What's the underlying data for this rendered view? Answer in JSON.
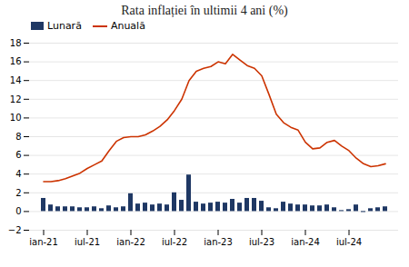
{
  "chart_data": {
    "type": "bar",
    "title": "Rata inflației în ultimii 4 ani (%)",
    "categories": [
      "ian-21",
      null,
      null,
      null,
      null,
      null,
      "iul-21",
      null,
      null,
      null,
      null,
      null,
      "ian-22",
      null,
      null,
      null,
      null,
      null,
      "iul-22",
      null,
      null,
      null,
      null,
      null,
      "ian-23",
      null,
      null,
      null,
      null,
      null,
      "iul-23",
      null,
      null,
      null,
      null,
      null,
      "ian-24",
      null,
      null,
      null,
      null,
      null,
      "iul-24",
      null,
      null,
      null,
      null,
      null
    ],
    "series": [
      {
        "name": "Lunară",
        "type": "bar",
        "color": "#1f3864",
        "values": [
          1.4,
          0.7,
          0.5,
          0.5,
          0.5,
          0.4,
          0.4,
          0.5,
          0.3,
          0.6,
          0.4,
          0.5,
          1.9,
          0.8,
          0.9,
          0.7,
          0.8,
          0.7,
          2.0,
          1.2,
          3.9,
          1.0,
          0.8,
          0.9,
          1.0,
          0.9,
          1.3,
          0.9,
          1.4,
          1.4,
          1.1,
          0.4,
          0.3,
          1.0,
          0.8,
          0.7,
          0.7,
          0.6,
          0.6,
          0.7,
          0.4,
          0.1,
          0.2,
          0.7,
          -0.1,
          0.3,
          0.4,
          0.5
        ]
      },
      {
        "name": "Anuală",
        "type": "line",
        "color": "#cc3300",
        "values": [
          3.2,
          3.2,
          3.3,
          3.5,
          3.8,
          4.1,
          4.6,
          5.0,
          5.4,
          6.5,
          7.5,
          7.9,
          8.0,
          8.0,
          8.2,
          8.6,
          9.1,
          9.8,
          10.8,
          12.0,
          14.0,
          15.0,
          15.3,
          15.5,
          16.0,
          15.8,
          16.8,
          16.2,
          15.6,
          15.3,
          14.5,
          12.5,
          10.4,
          9.5,
          9.0,
          8.7,
          7.4,
          6.7,
          6.8,
          7.4,
          7.6,
          7.0,
          6.5,
          5.7,
          5.1,
          4.8,
          4.9,
          5.1
        ]
      }
    ],
    "ylim": [
      -2,
      18
    ],
    "yticks": [
      -2,
      0,
      2,
      4,
      6,
      8,
      10,
      12,
      14,
      16,
      18
    ],
    "grid": true,
    "legend": "upper left"
  }
}
